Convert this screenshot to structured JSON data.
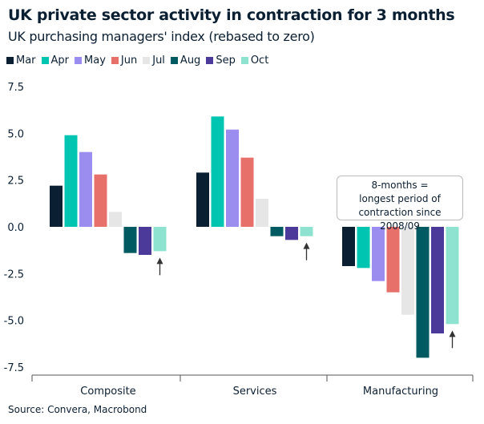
{
  "chart_data": {
    "type": "bar",
    "title": "UK private sector activity in contraction for 3 months",
    "subtitle": "UK purchasing managers' index (rebased to zero)",
    "categories": [
      "Composite",
      "Services",
      "Manufacturing"
    ],
    "series": [
      {
        "name": "Mar",
        "color": "#0b1f33",
        "values": [
          2.2,
          2.9,
          -2.1
        ]
      },
      {
        "name": "Apr",
        "color": "#00c5b0",
        "values": [
          4.9,
          5.9,
          -2.2
        ]
      },
      {
        "name": "May",
        "color": "#9b8cf0",
        "values": [
          4.0,
          5.2,
          -2.9
        ]
      },
      {
        "name": "Jun",
        "color": "#e8706a",
        "values": [
          2.8,
          3.7,
          -3.5
        ]
      },
      {
        "name": "Jul",
        "color": "#e6e6e6",
        "values": [
          0.8,
          1.5,
          -4.7
        ]
      },
      {
        "name": "Aug",
        "color": "#005a62",
        "values": [
          -1.4,
          -0.5,
          -7.0
        ]
      },
      {
        "name": "Sep",
        "color": "#4b3a9a",
        "values": [
          -1.5,
          -0.7,
          -5.7
        ]
      },
      {
        "name": "Oct",
        "color": "#8de3cf",
        "values": [
          -1.3,
          -0.5,
          -5.2
        ]
      }
    ],
    "yticks": [
      "7.5",
      "5.0",
      "2.5",
      "0.0",
      "-2.5",
      "-5.0",
      "-7.5"
    ],
    "ylim": [
      -7.5,
      7.5
    ],
    "legend": "top-left",
    "grid": false,
    "annotation": [
      "8-months =",
      "longest period of",
      "contraction since 2008/09"
    ],
    "source": "Source: Convera, Macrobond"
  }
}
